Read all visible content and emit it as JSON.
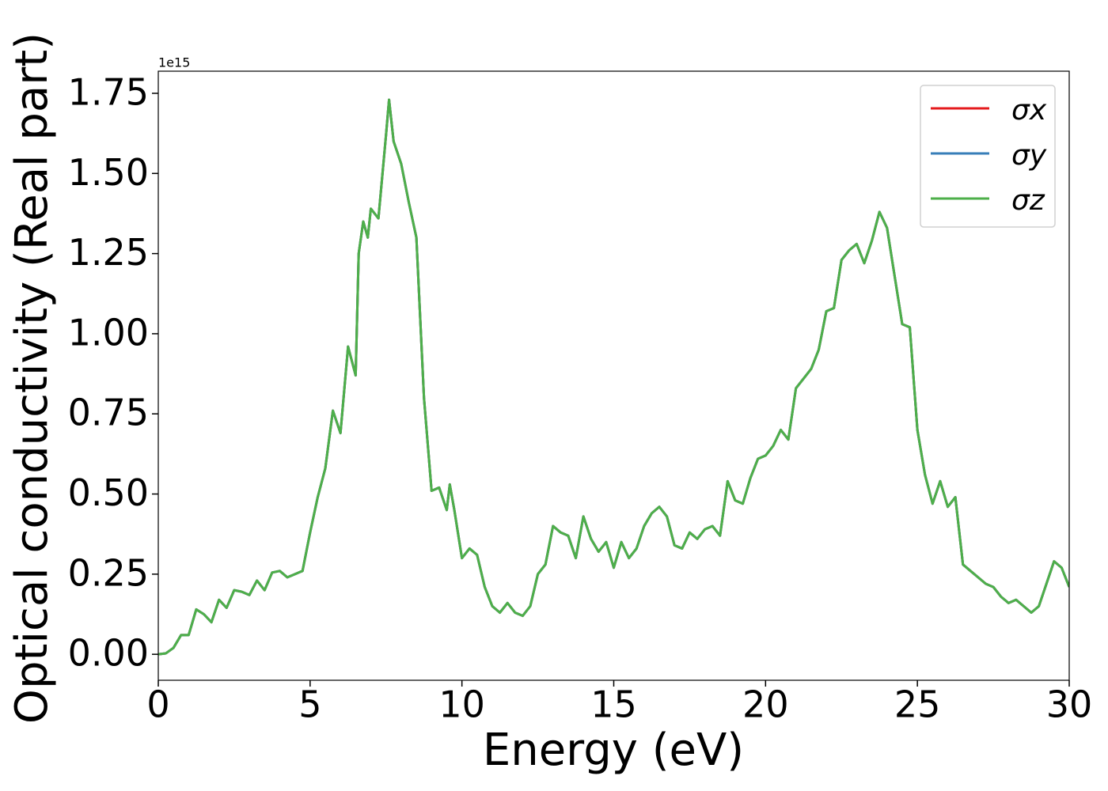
{
  "chart_data": {
    "type": "line",
    "xlabel": "Energy (eV)",
    "ylabel": "Optical conductivity (Real part)",
    "y_offset_label": "1e15",
    "xlim": [
      0,
      30
    ],
    "ylim": [
      -0.081,
      1.819
    ],
    "xticks": [
      0,
      5,
      10,
      15,
      20,
      25,
      30
    ],
    "yticks": [
      {
        "value": 0,
        "label": "0.00"
      },
      {
        "value": 0.25,
        "label": "0.25"
      },
      {
        "value": 0.5,
        "label": "0.50"
      },
      {
        "value": 0.75,
        "label": "0.75"
      },
      {
        "value": 1,
        "label": "1.00"
      },
      {
        "value": 1.25,
        "label": "1.25"
      },
      {
        "value": 1.5,
        "label": "1.50"
      },
      {
        "value": 1.75,
        "label": "1.75"
      }
    ],
    "legend": "upper right",
    "x": [
      0,
      0.25,
      0.5,
      0.75,
      1,
      1.25,
      1.5,
      1.75,
      2,
      2.25,
      2.5,
      2.75,
      3,
      3.25,
      3.5,
      3.75,
      4,
      4.25,
      4.5,
      4.75,
      5,
      5.25,
      5.5,
      5.75,
      6,
      6.25,
      6.5,
      6.6,
      6.75,
      6.9,
      7,
      7.25,
      7.5,
      7.6,
      7.75,
      8,
      8.25,
      8.5,
      8.75,
      9,
      9.25,
      9.5,
      9.6,
      9.75,
      10,
      10.25,
      10.5,
      10.75,
      11,
      11.25,
      11.5,
      11.75,
      12,
      12.25,
      12.5,
      12.75,
      13,
      13.25,
      13.5,
      13.75,
      14,
      14.25,
      14.5,
      14.75,
      15,
      15.25,
      15.5,
      15.75,
      16,
      16.25,
      16.5,
      16.75,
      17,
      17.25,
      17.5,
      17.75,
      18,
      18.25,
      18.5,
      18.75,
      19,
      19.25,
      19.5,
      19.75,
      20,
      20.25,
      20.5,
      20.75,
      21,
      21.25,
      21.5,
      21.75,
      22,
      22.25,
      22.5,
      22.75,
      23,
      23.25,
      23.5,
      23.75,
      24,
      24.25,
      24.5,
      24.75,
      25,
      25.25,
      25.5,
      25.75,
      26,
      26.25,
      26.5,
      26.75,
      27,
      27.25,
      27.5,
      27.75,
      28,
      28.25,
      28.5,
      28.75,
      29,
      29.25,
      29.5,
      29.75,
      30
    ],
    "series": [
      {
        "name": "σx",
        "color": "#e41a1c",
        "values": [
          0,
          0.003,
          0.02,
          0.06,
          0.06,
          0.14,
          0.125,
          0.1,
          0.17,
          0.145,
          0.2,
          0.195,
          0.185,
          0.23,
          0.2,
          0.255,
          0.26,
          0.24,
          0.25,
          0.26,
          0.38,
          0.49,
          0.58,
          0.76,
          0.69,
          0.96,
          0.87,
          1.25,
          1.35,
          1.3,
          1.39,
          1.36,
          1.62,
          1.73,
          1.6,
          1.53,
          1.41,
          1.3,
          0.8,
          0.51,
          0.52,
          0.45,
          0.53,
          0.45,
          0.3,
          0.33,
          0.31,
          0.21,
          0.15,
          0.13,
          0.16,
          0.13,
          0.12,
          0.15,
          0.25,
          0.28,
          0.4,
          0.38,
          0.37,
          0.3,
          0.43,
          0.36,
          0.32,
          0.35,
          0.27,
          0.35,
          0.3,
          0.33,
          0.4,
          0.44,
          0.46,
          0.43,
          0.34,
          0.33,
          0.38,
          0.36,
          0.39,
          0.4,
          0.37,
          0.54,
          0.48,
          0.47,
          0.55,
          0.61,
          0.62,
          0.65,
          0.7,
          0.67,
          0.83,
          0.86,
          0.89,
          0.95,
          1.07,
          1.08,
          1.23,
          1.26,
          1.28,
          1.22,
          1.29,
          1.38,
          1.33,
          1.18,
          1.03,
          1.02,
          0.7,
          0.56,
          0.47,
          0.54,
          0.46,
          0.49,
          0.28,
          0.26,
          0.24,
          0.22,
          0.21,
          0.18,
          0.16,
          0.17,
          0.15,
          0.13,
          0.15,
          0.22,
          0.29,
          0.27,
          0.21
        ]
      },
      {
        "name": "σy",
        "color": "#377eb8",
        "values": [
          0,
          0.003,
          0.02,
          0.06,
          0.06,
          0.14,
          0.125,
          0.1,
          0.17,
          0.145,
          0.2,
          0.195,
          0.185,
          0.23,
          0.2,
          0.255,
          0.26,
          0.24,
          0.25,
          0.26,
          0.38,
          0.49,
          0.58,
          0.76,
          0.69,
          0.96,
          0.87,
          1.25,
          1.35,
          1.3,
          1.39,
          1.36,
          1.62,
          1.73,
          1.6,
          1.53,
          1.41,
          1.3,
          0.8,
          0.51,
          0.52,
          0.45,
          0.53,
          0.45,
          0.3,
          0.33,
          0.31,
          0.21,
          0.15,
          0.13,
          0.16,
          0.13,
          0.12,
          0.15,
          0.25,
          0.28,
          0.4,
          0.38,
          0.37,
          0.3,
          0.43,
          0.36,
          0.32,
          0.35,
          0.27,
          0.35,
          0.3,
          0.33,
          0.4,
          0.44,
          0.46,
          0.43,
          0.34,
          0.33,
          0.38,
          0.36,
          0.39,
          0.4,
          0.37,
          0.54,
          0.48,
          0.47,
          0.55,
          0.61,
          0.62,
          0.65,
          0.7,
          0.67,
          0.83,
          0.86,
          0.89,
          0.95,
          1.07,
          1.08,
          1.23,
          1.26,
          1.28,
          1.22,
          1.29,
          1.38,
          1.33,
          1.18,
          1.03,
          1.02,
          0.7,
          0.56,
          0.47,
          0.54,
          0.46,
          0.49,
          0.28,
          0.26,
          0.24,
          0.22,
          0.21,
          0.18,
          0.16,
          0.17,
          0.15,
          0.13,
          0.15,
          0.22,
          0.29,
          0.27,
          0.21
        ]
      },
      {
        "name": "σz",
        "color": "#4daf4a",
        "values": [
          0,
          0.003,
          0.02,
          0.06,
          0.06,
          0.14,
          0.125,
          0.1,
          0.17,
          0.145,
          0.2,
          0.195,
          0.185,
          0.23,
          0.2,
          0.255,
          0.26,
          0.24,
          0.25,
          0.26,
          0.38,
          0.49,
          0.58,
          0.76,
          0.69,
          0.96,
          0.87,
          1.25,
          1.35,
          1.3,
          1.39,
          1.36,
          1.62,
          1.73,
          1.6,
          1.53,
          1.41,
          1.3,
          0.8,
          0.51,
          0.52,
          0.45,
          0.53,
          0.45,
          0.3,
          0.33,
          0.31,
          0.21,
          0.15,
          0.13,
          0.16,
          0.13,
          0.12,
          0.15,
          0.25,
          0.28,
          0.4,
          0.38,
          0.37,
          0.3,
          0.43,
          0.36,
          0.32,
          0.35,
          0.27,
          0.35,
          0.3,
          0.33,
          0.4,
          0.44,
          0.46,
          0.43,
          0.34,
          0.33,
          0.38,
          0.36,
          0.39,
          0.4,
          0.37,
          0.54,
          0.48,
          0.47,
          0.55,
          0.61,
          0.62,
          0.65,
          0.7,
          0.67,
          0.83,
          0.86,
          0.89,
          0.95,
          1.07,
          1.08,
          1.23,
          1.26,
          1.28,
          1.22,
          1.29,
          1.38,
          1.33,
          1.18,
          1.03,
          1.02,
          0.7,
          0.56,
          0.47,
          0.54,
          0.46,
          0.49,
          0.28,
          0.26,
          0.24,
          0.22,
          0.21,
          0.18,
          0.16,
          0.17,
          0.15,
          0.13,
          0.15,
          0.22,
          0.29,
          0.27,
          0.21
        ]
      }
    ]
  }
}
